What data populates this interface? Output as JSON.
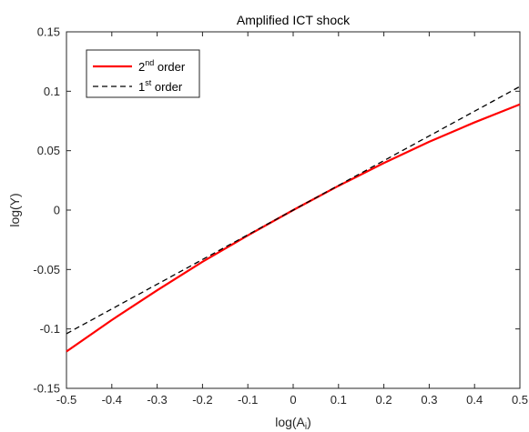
{
  "chart_data": {
    "type": "line",
    "title": "Amplified ICT shock",
    "xlabel": {
      "base": "log(A",
      "sub": "i",
      "close": ")"
    },
    "ylabel": "log(Y)",
    "xlim": [
      -0.5,
      0.5
    ],
    "ylim": [
      -0.15,
      0.15
    ],
    "xticks": [
      -0.5,
      -0.4,
      -0.3,
      -0.2,
      -0.1,
      0,
      0.1,
      0.2,
      0.3,
      0.4,
      0.5
    ],
    "xtick_labels": [
      "-0.5",
      "-0.4",
      "-0.3",
      "-0.2",
      "-0.1",
      "0",
      "0.1",
      "0.2",
      "0.3",
      "0.4",
      "0.5"
    ],
    "yticks": [
      -0.15,
      -0.1,
      -0.05,
      0,
      0.05,
      0.1,
      0.15
    ],
    "ytick_labels": [
      "-0.15",
      "-0.1",
      "-0.05",
      "0",
      "0.05",
      "0.1",
      "0.15"
    ],
    "grid": false,
    "legend_position": "top-left",
    "series": [
      {
        "name": {
          "base": "2",
          "sup": "nd",
          "rest": " order"
        },
        "color": "#ff0000",
        "style": "solid",
        "x": [
          -0.5,
          -0.4,
          -0.3,
          -0.2,
          -0.1,
          0,
          0.1,
          0.2,
          0.3,
          0.4,
          0.5
        ],
        "y": [
          -0.119,
          -0.0925,
          -0.0675,
          -0.0435,
          -0.0213,
          0,
          0.0204,
          0.0396,
          0.0575,
          0.0738,
          0.089
        ]
      },
      {
        "name": {
          "base": "1",
          "sup": "st",
          "rest": " order"
        },
        "color": "#000000",
        "style": "dashed",
        "x": [
          -0.5,
          0.5
        ],
        "y": [
          -0.104,
          0.104
        ]
      }
    ]
  }
}
